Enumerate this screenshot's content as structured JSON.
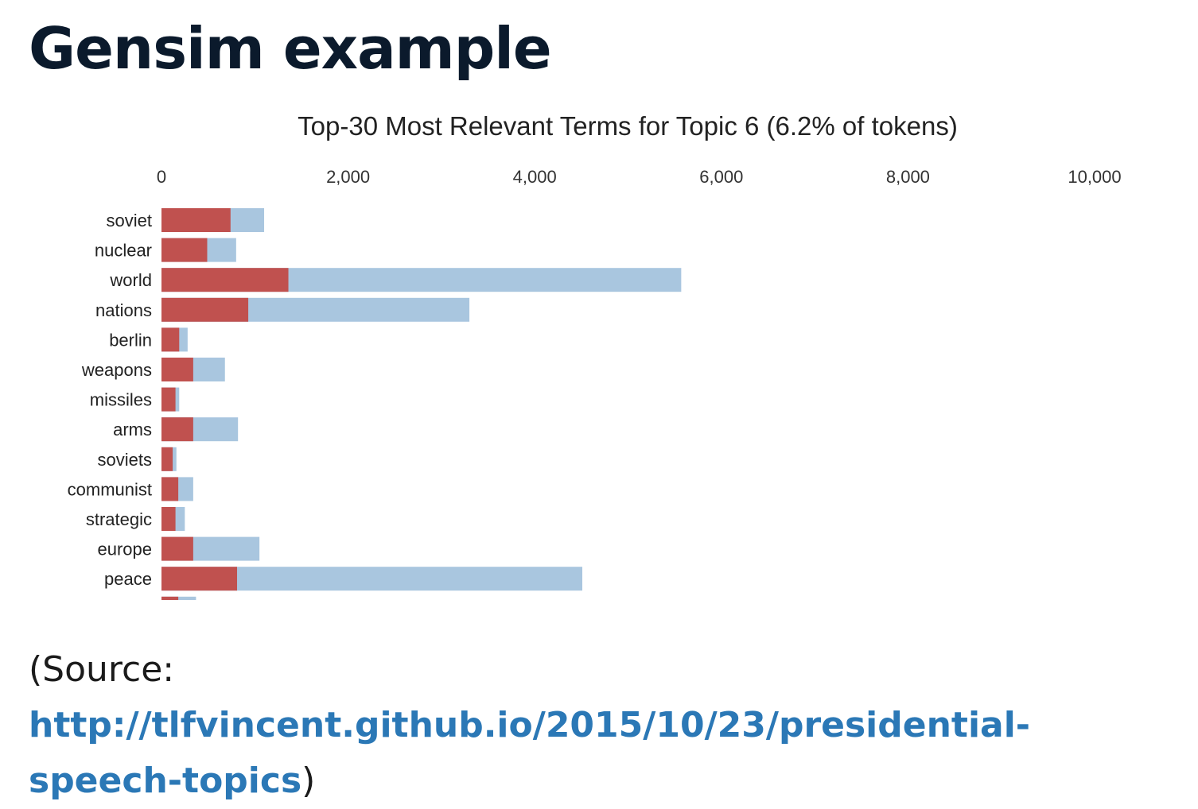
{
  "heading": "Gensim example",
  "source": {
    "prefix": "(Source: ",
    "link_text": "http://tlfvincent.github.io/2015/10/23/presidential-speech-topics",
    "suffix": ")"
  },
  "colors": {
    "overall": "#a9c6df",
    "topic": "#c0514f"
  },
  "chart_data": {
    "type": "bar",
    "orientation": "horizontal",
    "stacked_overlay": true,
    "title": "Top-30 Most Relevant Terms for Topic 6 (6.2% of tokens)",
    "xlabel": "",
    "ylabel": "",
    "xlim": [
      0,
      10000
    ],
    "x_ticks": [
      "0",
      "2,000",
      "4,000",
      "6,000",
      "8,000",
      "10,000"
    ],
    "x_tick_values": [
      0,
      2000,
      4000,
      6000,
      8000,
      10000
    ],
    "grid": false,
    "categories": [
      "soviet",
      "nuclear",
      "world",
      "nations",
      "berlin",
      "weapons",
      "missiles",
      "arms",
      "soviets",
      "communist",
      "strategic",
      "europe",
      "peace",
      ""
    ],
    "series": [
      {
        "values": [
          1100,
          800,
          5570,
          3300,
          280,
          680,
          190,
          820,
          160,
          340,
          250,
          1050,
          4510,
          370
        ]
      },
      {
        "values": [
          740,
          490,
          1360,
          930,
          190,
          340,
          150,
          340,
          120,
          180,
          150,
          340,
          810,
          180
        ]
      }
    ]
  }
}
